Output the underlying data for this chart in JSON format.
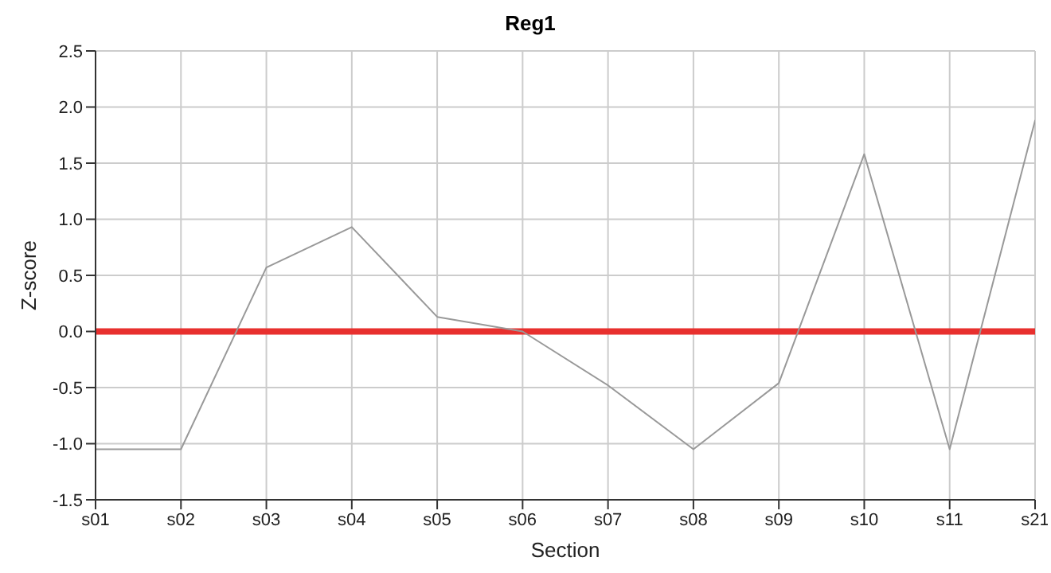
{
  "chart_data": {
    "type": "line",
    "title": "Reg1",
    "xlabel": "Section",
    "ylabel": "Z-score",
    "categories": [
      "s01",
      "s02",
      "s03",
      "s04",
      "s05",
      "s06",
      "s07",
      "s08",
      "s09",
      "s10",
      "s11",
      "s21"
    ],
    "series": [
      {
        "color": "#999999",
        "values": [
          -1.05,
          -1.05,
          0.57,
          0.93,
          0.13,
          0.0,
          -0.48,
          -1.05,
          -0.46,
          1.58,
          -1.05,
          1.88
        ]
      }
    ],
    "ylim": [
      -1.5,
      2.5
    ],
    "yticks": [
      {
        "value": -1.5,
        "label": "-1.5"
      },
      {
        "value": -1,
        "label": "-1.0"
      },
      {
        "value": -0.5,
        "label": "-0.5"
      },
      {
        "value": 0,
        "label": "0.0"
      },
      {
        "value": 0.5,
        "label": "0.5"
      },
      {
        "value": 1,
        "label": "1.0"
      },
      {
        "value": 1.5,
        "label": "1.5"
      },
      {
        "value": 2,
        "label": "2.0"
      },
      {
        "value": 2.5,
        "label": "2.5"
      }
    ],
    "ref_lines": [
      {
        "axis": "y",
        "value": 0,
        "color": "#e8302e"
      }
    ],
    "grid": true,
    "legend": false,
    "marker": "none",
    "line_style": "solid"
  }
}
